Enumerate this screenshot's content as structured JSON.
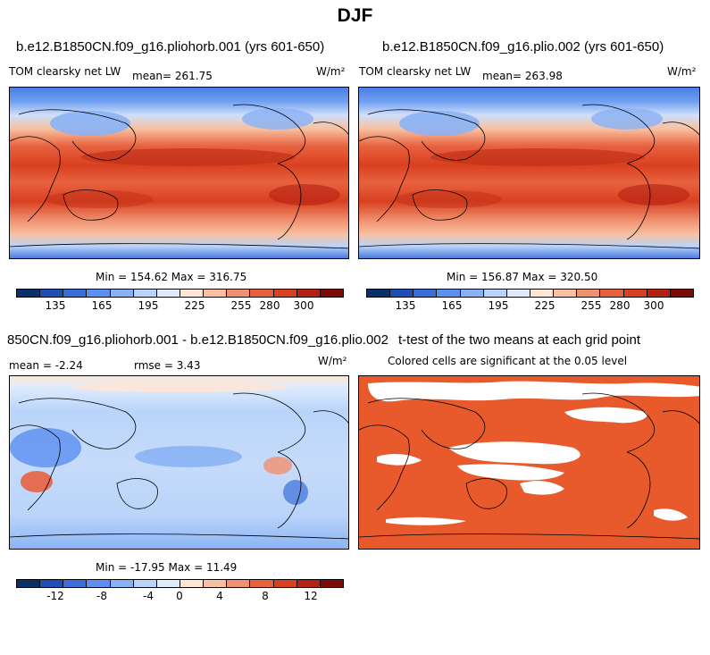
{
  "season": "DJF",
  "panels": [
    {
      "case": "b.e12.B1850CN.f09_g16.pliohorb.001 (yrs 601-650)",
      "variable": "TOM clearsky net LW",
      "mean_label": "mean= 261.75",
      "units": "W/m²",
      "minmax": "Min = 154.62 Max = 316.75",
      "colorbar_ticks": [
        "135",
        "165",
        "195",
        "225",
        "255",
        "280",
        "300"
      ]
    },
    {
      "case": "b.e12.B1850CN.f09_g16.plio.002 (yrs 601-650)",
      "variable": "TOM clearsky net LW",
      "mean_label": "mean= 263.98",
      "units": "W/m²",
      "minmax": "Min = 156.87 Max = 320.50",
      "colorbar_ticks": [
        "135",
        "165",
        "195",
        "225",
        "255",
        "280",
        "300"
      ]
    },
    {
      "case": "850CN.f09_g16.pliohorb.001 - b.e12.B1850CN.f09_g16.plio.002",
      "mean_label": "mean =   -2.24",
      "rmse_label": "rmse =    3.43",
      "units": "W/m²",
      "minmax": "Min = -17.95 Max =  11.49",
      "colorbar_ticks": [
        "-12",
        "-8",
        "-4",
        "0",
        "4",
        "8",
        "12"
      ]
    },
    {
      "case": "t-test of the two means at each grid point",
      "note": "Colored cells are significant at the 0.05 level"
    }
  ],
  "colors": {
    "abs_scale": [
      "#08306b",
      "#1d4fb5",
      "#3a6fd9",
      "#5b8ff0",
      "#89b2f5",
      "#b9d4fa",
      "#e0ecfc",
      "#fde6d6",
      "#f8c0a0",
      "#f09170",
      "#e8623f",
      "#d94020",
      "#b52214",
      "#7a0b06"
    ],
    "diff_scale": [
      "#08306b",
      "#1d4fb5",
      "#3a6fd9",
      "#5b8ff0",
      "#89b2f5",
      "#b9d4fa",
      "#e0ecfc",
      "#fde6d6",
      "#f8c0a0",
      "#f09170",
      "#e8623f",
      "#d94020",
      "#b52214",
      "#7a0b06"
    ],
    "significance": "#e85a2c"
  }
}
